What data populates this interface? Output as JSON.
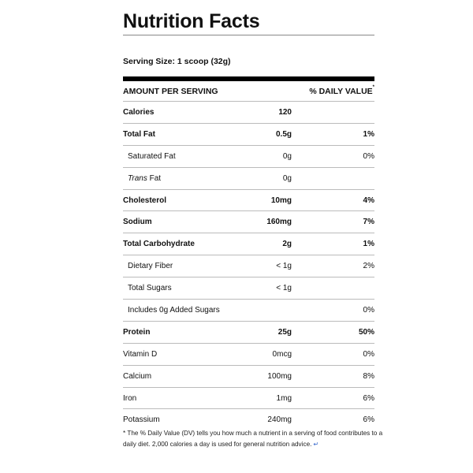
{
  "title": "Nutrition Facts",
  "serving_size": "Serving Size: 1 scoop (32g)",
  "header": {
    "amount_per_serving": "AMOUNT PER SERVING",
    "daily_value": "% DAILY VALUE",
    "daily_value_marker": "*"
  },
  "rows": [
    {
      "name": "Calories",
      "amount": "120",
      "dv": "",
      "bold": true,
      "sub": false
    },
    {
      "name": "Total Fat",
      "amount": "0.5g",
      "dv": "1%",
      "bold": true,
      "sub": false
    },
    {
      "name": "Saturated Fat",
      "amount": "0g",
      "dv": "0%",
      "bold": false,
      "sub": true
    },
    {
      "name_italic": "Trans",
      "name": " Fat",
      "amount": "0g",
      "dv": "",
      "bold": false,
      "sub": true
    },
    {
      "name": "Cholesterol",
      "amount": "10mg",
      "dv": "4%",
      "bold": true,
      "sub": false
    },
    {
      "name": "Sodium",
      "amount": "160mg",
      "dv": "7%",
      "bold": true,
      "sub": false
    },
    {
      "name": "Total Carbohydrate",
      "amount": "2g",
      "dv": "1%",
      "bold": true,
      "sub": false
    },
    {
      "name": "Dietary Fiber",
      "amount": "< 1g",
      "dv": "2%",
      "bold": false,
      "sub": true
    },
    {
      "name": "Total Sugars",
      "amount": "< 1g",
      "dv": "",
      "bold": false,
      "sub": true
    },
    {
      "name": "Includes 0g Added Sugars",
      "amount": "",
      "dv": "0%",
      "bold": false,
      "sub": true
    },
    {
      "name": "Protein",
      "amount": "25g",
      "dv": "50%",
      "bold": true,
      "sub": false
    },
    {
      "name": "Vitamin D",
      "amount": "0mcg",
      "dv": "0%",
      "bold": false,
      "sub": false
    },
    {
      "name": "Calcium",
      "amount": "100mg",
      "dv": "8%",
      "bold": false,
      "sub": false
    },
    {
      "name": "Iron",
      "amount": "1mg",
      "dv": "6%",
      "bold": false,
      "sub": false
    },
    {
      "name": "Potassium",
      "amount": "240mg",
      "dv": "6%",
      "bold": false,
      "sub": false
    }
  ],
  "footnote": "* The % Daily Value (DV) tells you how much a nutrient in a serving of food contributes to a daily diet. 2,000 calories a day is used for general nutrition advice.",
  "footnote_icon": "return-arrow-icon"
}
